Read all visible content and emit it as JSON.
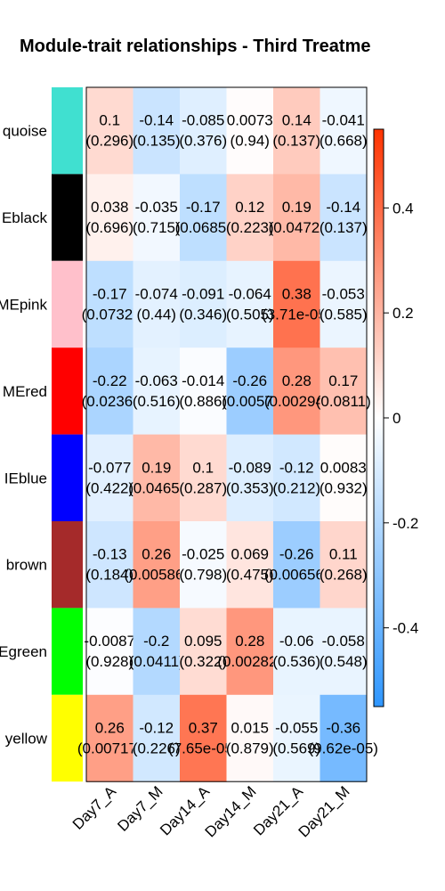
{
  "chart_data": {
    "type": "heatmap",
    "title": "Module-trait relationships - Third Treatme",
    "columns": [
      "Day7_A",
      "Day7_M",
      "Day14_A",
      "Day14_M",
      "Day21_A",
      "Day21_M"
    ],
    "rows": [
      {
        "label": "quoise",
        "color": "#40E0D0"
      },
      {
        "label": "Eblack",
        "color": "#000000"
      },
      {
        "label": "MEpink",
        "color": "#FFC0CB"
      },
      {
        "label": "MEred",
        "color": "#FF0000"
      },
      {
        "label": "IEblue",
        "color": "#0000FF"
      },
      {
        "label": "brown",
        "color": "#A52A2A"
      },
      {
        "label": "Egreen",
        "color": "#00FF00"
      },
      {
        "label": "yellow",
        "color": "#FFFF00"
      }
    ],
    "values": [
      [
        0.1,
        -0.14,
        -0.085,
        0.0073,
        0.14,
        -0.041
      ],
      [
        0.038,
        -0.035,
        -0.17,
        0.12,
        0.19,
        -0.14
      ],
      [
        -0.17,
        -0.074,
        -0.091,
        -0.064,
        0.38,
        -0.053
      ],
      [
        -0.22,
        -0.063,
        -0.014,
        -0.26,
        0.28,
        0.17
      ],
      [
        -0.077,
        0.19,
        0.1,
        -0.089,
        -0.12,
        0.0083
      ],
      [
        -0.13,
        0.26,
        -0.025,
        0.069,
        -0.26,
        0.11
      ],
      [
        -0.0087,
        -0.2,
        0.095,
        0.28,
        -0.06,
        -0.058
      ],
      [
        0.26,
        -0.12,
        0.37,
        0.015,
        -0.055,
        -0.36
      ]
    ],
    "value_labels": [
      [
        "0.1",
        "-0.14",
        "-0.085",
        "0.0073",
        "0.14",
        "-0.041"
      ],
      [
        "0.038",
        "-0.035",
        "-0.17",
        "0.12",
        "0.19",
        "-0.14"
      ],
      [
        "-0.17",
        "-0.074",
        "-0.091",
        "-0.064",
        "0.38",
        "-0.053"
      ],
      [
        "-0.22",
        "-0.063",
        "-0.014",
        "-0.26",
        "0.28",
        "0.17"
      ],
      [
        "-0.077",
        "0.19",
        "0.1",
        "-0.089",
        "-0.12",
        "0.0083"
      ],
      [
        "-0.13",
        "0.26",
        "-0.025",
        "0.069",
        "-0.26",
        "0.11"
      ],
      [
        "-0.0087",
        "-0.2",
        "0.095",
        "0.28",
        "-0.06",
        "-0.058"
      ],
      [
        "0.26",
        "-0.12",
        "0.37",
        "0.015",
        "-0.055",
        "-0.36"
      ]
    ],
    "pvalue_labels": [
      [
        "(0.296)",
        "(0.135)",
        "(0.376)",
        "(0.94)",
        "(0.137)",
        "(0.668)"
      ],
      [
        "(0.696)",
        "(0.715)",
        "(0.0685)",
        "(0.223)",
        "(0.0472)",
        "(0.137)"
      ],
      [
        "(0.0732)",
        "(0.44)",
        "(0.346)",
        "(0.505)",
        "(3.71e-05)",
        "(0.585)"
      ],
      [
        "(0.0236)",
        "(0.516)",
        "(0.886)",
        "(0.0057)",
        "(0.00294)",
        "(0.0811)"
      ],
      [
        "(0.422)",
        "(0.0465)",
        "(0.287)",
        "(0.353)",
        "(0.212)",
        "(0.932)"
      ],
      [
        "(0.184)",
        "(0.00586)",
        "(0.798)",
        "(0.475)",
        "(0.00656)",
        "(0.268)"
      ],
      [
        "(0.928)",
        "(0.0411)",
        "(0.322)",
        "(0.00282)",
        "(0.536)",
        "(0.548)"
      ],
      [
        "(0.00717)",
        "(0.226)",
        "(7.65e-05)",
        "(0.879)",
        "(0.569)",
        "(9.62e-05)"
      ]
    ],
    "colorbar": {
      "range": [
        -0.55,
        0.55
      ],
      "ticks": [
        -0.4,
        -0.2,
        0,
        0.2,
        0.4
      ],
      "tick_labels": [
        "-0.4",
        "-0.2",
        "0",
        "0.2",
        "0.4"
      ],
      "colors": {
        "low": "#2E96FF",
        "mid": "#FFFFFF",
        "high": "#FF3300"
      }
    },
    "legend": "right"
  }
}
